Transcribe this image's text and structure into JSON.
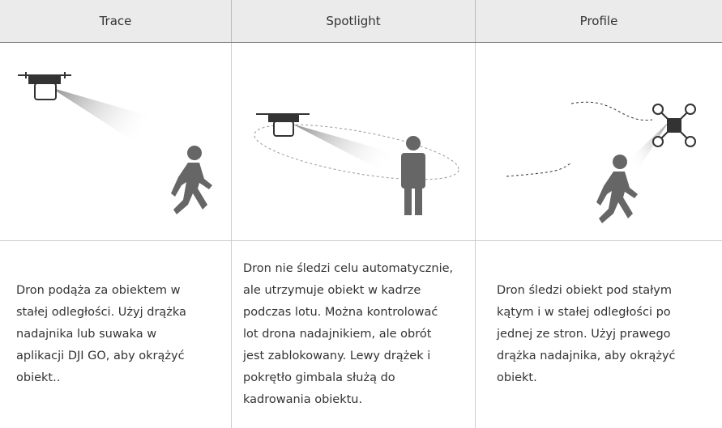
{
  "header": {
    "columns": [
      "Trace",
      "Spotlight",
      "Profile"
    ]
  },
  "descriptions": [
    [
      "Dron podąża za obiektem w",
      "stałej odległości. Użyj drążka",
      "nadajnika lub suwaka w",
      "aplikacji DJI GO, aby okrążyć",
      "obiekt.."
    ],
    [
      "Dron nie śledzi celu automatycznie,",
      "ale utrzymuje obiekt w kadrze",
      "podczas lotu. Można kontrolować",
      "lot drona nadajnikiem, ale obrót",
      "jest zablokowany. Lewy drążek i",
      "pokrętło gimbala służą do",
      "kadrowania obiektu."
    ],
    [
      "Dron śledzi obiekt pod stałym",
      "kątym i w stałej odległości po",
      "jednej ze stron. Użyj prawego",
      "drążka nadajnika, aby okrążyć",
      "obiekt."
    ]
  ]
}
